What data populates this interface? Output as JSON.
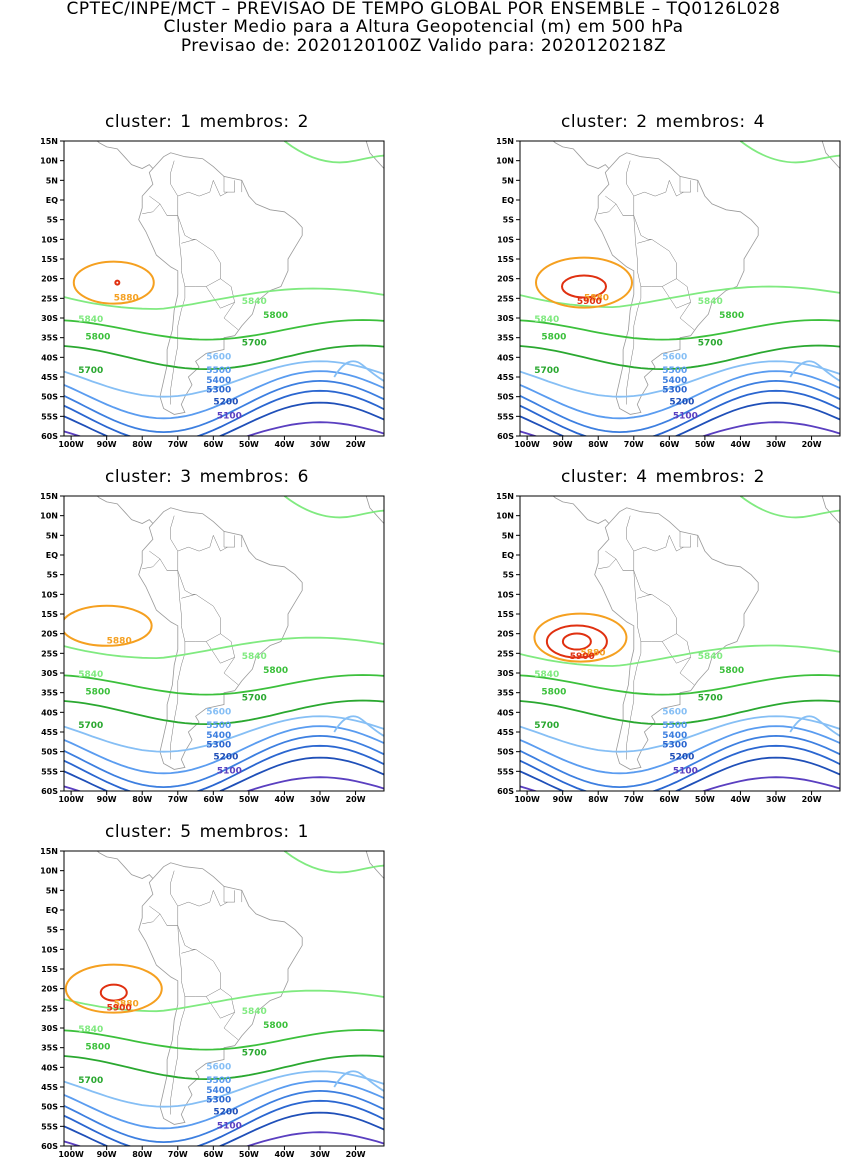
{
  "header": {
    "line1": "CPTEC/INPE/MCT – PREVISAO DE TEMPO GLOBAL POR ENSEMBLE – TQ0126L028",
    "line2": "Cluster Medio para a Altura Geopotencial (m) em 500 hPa",
    "line3": "Previsao de: 2020120100Z    Valido para: 2020120218Z"
  },
  "axes": {
    "lat_ticks": [
      "15N",
      "10N",
      "5N",
      "EQ",
      "5S",
      "10S",
      "15S",
      "20S",
      "25S",
      "30S",
      "35S",
      "40S",
      "45S",
      "50S",
      "55S",
      "60S"
    ],
    "lon_ticks": [
      "100W",
      "90W",
      "80W",
      "70W",
      "60W",
      "50W",
      "40W",
      "30W",
      "20W"
    ]
  },
  "colors": {
    "c5100": "#5a3fc0",
    "c5200": "#1f4fb8",
    "c5300": "#2a66d0",
    "c5400": "#3d7fe0",
    "c5500": "#5a9cf0",
    "c5600": "#86bff5",
    "c5700": "#2aa830",
    "c5800": "#3cc03c",
    "c5840": "#80ea80",
    "c5880": "#f5a020",
    "c5900": "#e03010",
    "coast": "#9a9a9a"
  },
  "contour_labels": [
    "5100",
    "5200",
    "5300",
    "5400",
    "5500",
    "5600",
    "5700",
    "5800",
    "5840",
    "5880",
    "5900"
  ],
  "panels": [
    {
      "cluster_label": "cluster:",
      "cluster": "1",
      "members_label": "membros:",
      "members": "2"
    },
    {
      "cluster_label": "cluster:",
      "cluster": "2",
      "members_label": "membros:",
      "members": "4"
    },
    {
      "cluster_label": "cluster:",
      "cluster": "3",
      "members_label": "membros:",
      "members": "6"
    },
    {
      "cluster_label": "cluster:",
      "cluster": "4",
      "members_label": "membros:",
      "members": "2"
    },
    {
      "cluster_label": "cluster:",
      "cluster": "5",
      "members_label": "membros:",
      "members": "1"
    }
  ]
}
